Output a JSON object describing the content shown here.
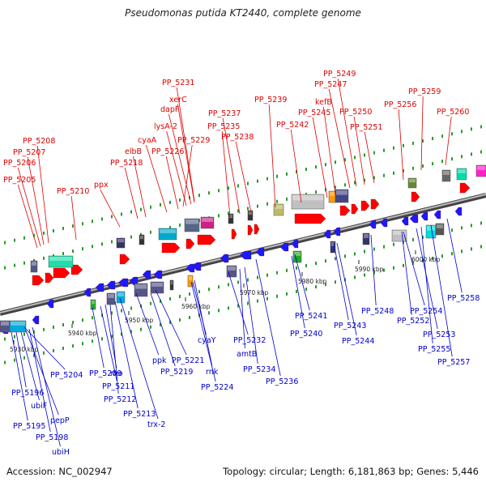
{
  "title": "Pseudomonas putida KT2440, complete genome",
  "footer": {
    "accession": "Accession: NC_002947",
    "stats": "Topology: circular; Length: 6,181,863 bp; Genes: 5,446"
  },
  "colors": {
    "forward_label": "#dd0000",
    "reverse_label": "#0000cc",
    "forward_gene": "#ff0000",
    "reverse_gene": "#1a1aff",
    "tick": "#2a9a2a"
  },
  "kbp_labels": [
    "5930 kbp",
    "5940 kbp",
    "5950 kbp",
    "5960 kbp",
    "5970 kbp",
    "5980 kbp",
    "5990 kbp",
    "6000 kbp"
  ],
  "top_labels": [
    "PP_5231",
    "xerC",
    "dapF",
    "lysA-2",
    "PP_5229",
    "PP_5226",
    "cyaA",
    "elbB",
    "PP_5218",
    "ppx",
    "PP_5208",
    "PP_5207",
    "PP_5206",
    "PP_5205",
    "PP_5210",
    "PP_5237",
    "PP_5235",
    "PP_5238",
    "PP_5239",
    "PP_5242",
    "PP_5249",
    "PP_5247",
    "kefB",
    "PP_5245",
    "PP_5250",
    "PP_5251",
    "PP_5256",
    "PP_5259",
    "PP_5260"
  ],
  "bottom_labels": [
    "PP_5204",
    "PP_5196",
    "ubiF",
    "pepP",
    "PP_5195",
    "PP_5198",
    "ubiH",
    "PP_5209",
    "PP_5211",
    "rho",
    "PP_5212",
    "PP_5213",
    "trx-2",
    "ppk",
    "PP_5221",
    "PP_5219",
    "cyaY",
    "rnk",
    "PP_5224",
    "PP_5232",
    "amtB",
    "PP_5234",
    "PP_5236",
    "PP_5241",
    "PP_5240",
    "PP_5243",
    "PP_5244",
    "PP_5248",
    "PP_5254",
    "PP_5252",
    "PP_5253",
    "PP_5255",
    "PP_5257",
    "PP_5258"
  ]
}
